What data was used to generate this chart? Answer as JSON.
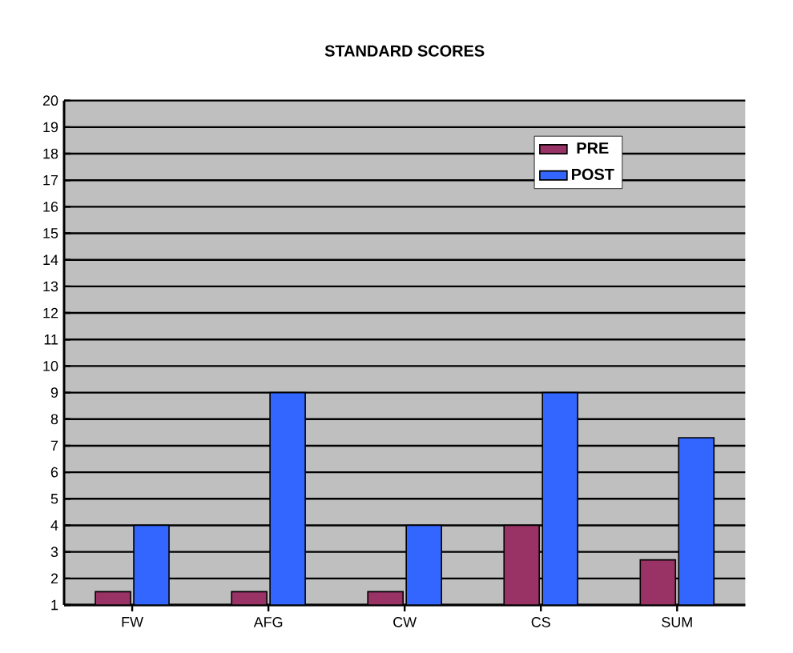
{
  "chart_data": {
    "type": "bar",
    "title": "STANDARD SCORES",
    "categories": [
      "FW",
      "AFG",
      "CW",
      "CS",
      "SUM"
    ],
    "series": [
      {
        "name": "PRE",
        "color": "#993366",
        "values": [
          1.5,
          1.5,
          1.5,
          4,
          2.7
        ]
      },
      {
        "name": "POST",
        "color": "#3366ff",
        "values": [
          4,
          9,
          4,
          9,
          7.3
        ]
      }
    ],
    "ylim": [
      1,
      20
    ],
    "yticks": [
      1,
      2,
      3,
      4,
      5,
      6,
      7,
      8,
      9,
      10,
      11,
      12,
      13,
      14,
      15,
      16,
      17,
      18,
      19,
      20
    ],
    "grid": "y",
    "legend": "top right"
  }
}
